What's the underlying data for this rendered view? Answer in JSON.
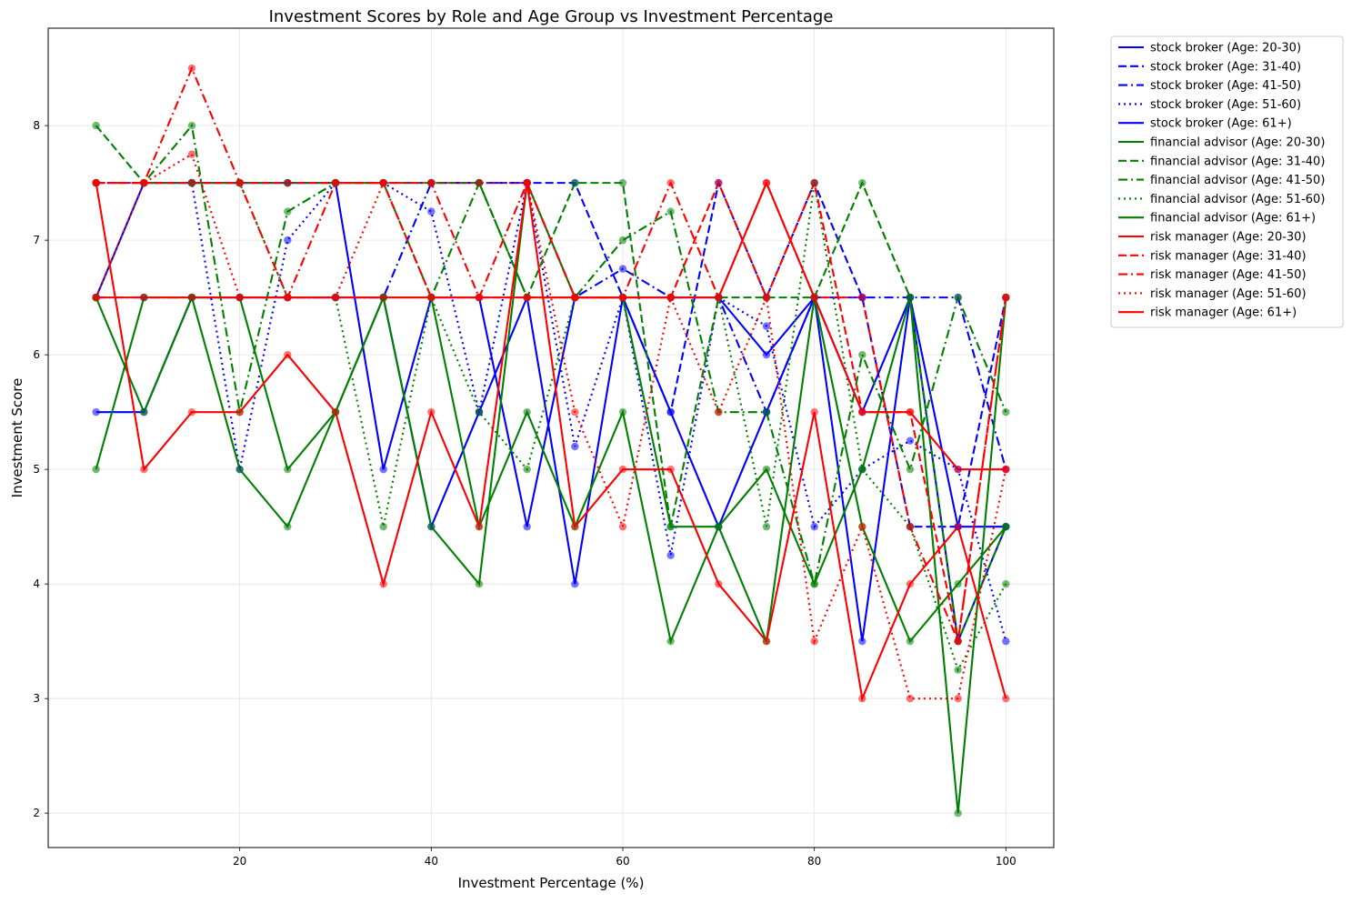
{
  "chart_data": {
    "type": "line",
    "title": "Investment Scores by Role and Age Group vs Investment Percentage",
    "xlabel": "Investment Percentage (%)",
    "ylabel": "Investment Score",
    "xlim": [
      0,
      105
    ],
    "ylim": [
      1.7,
      8.85
    ],
    "xticks": [
      20,
      40,
      60,
      80,
      100
    ],
    "yticks": [
      2,
      3,
      4,
      5,
      6,
      7,
      8
    ],
    "grid": true,
    "legend_position": "outside-right",
    "colors": {
      "stock broker": "#0000ff",
      "financial advisor": "#008000",
      "risk manager": "#ff0000"
    },
    "series": [
      {
        "name": "stock broker (Age: 20-30)",
        "role": "stock broker",
        "style": "solid",
        "x": [
          5,
          10,
          15,
          20,
          25,
          30,
          35,
          40,
          45,
          50,
          55,
          60,
          65,
          70,
          75,
          80,
          85,
          90,
          95,
          100
        ],
        "y": [
          5.5,
          5.5,
          6.5,
          6.5,
          6.5,
          6.5,
          6.5,
          4.5,
          5.5,
          6.5,
          4.0,
          6.5,
          5.5,
          4.5,
          5.5,
          6.5,
          3.5,
          6.5,
          4.5,
          4.5
        ]
      },
      {
        "name": "stock broker (Age: 31-40)",
        "role": "stock broker",
        "style": "dashed",
        "x": [
          5,
          10,
          15,
          20,
          25,
          30,
          35,
          40,
          45,
          50,
          55,
          60,
          65,
          70,
          75,
          80,
          85,
          90,
          95,
          100
        ],
        "y": [
          7.5,
          7.5,
          7.5,
          7.5,
          7.5,
          7.5,
          7.5,
          7.5,
          7.5,
          7.5,
          7.5,
          6.5,
          5.5,
          7.5,
          6.5,
          7.5,
          6.5,
          4.5,
          4.5,
          6.5
        ]
      },
      {
        "name": "stock broker (Age: 41-50)",
        "role": "stock broker",
        "style": "dashdot",
        "x": [
          5,
          10,
          15,
          20,
          25,
          30,
          35,
          40,
          45,
          50,
          55,
          60,
          65,
          70,
          75,
          80,
          85,
          90,
          95,
          100
        ],
        "y": [
          6.5,
          6.5,
          6.5,
          6.5,
          6.5,
          6.5,
          6.5,
          7.5,
          7.5,
          7.5,
          6.5,
          6.75,
          6.5,
          6.5,
          5.5,
          6.5,
          6.5,
          6.5,
          6.5,
          5.0
        ]
      },
      {
        "name": "stock broker (Age: 51-60)",
        "role": "stock broker",
        "style": "dotted",
        "x": [
          5,
          10,
          15,
          20,
          25,
          30,
          35,
          40,
          45,
          50,
          55,
          60,
          65,
          70,
          75,
          80,
          85,
          90,
          95,
          100
        ],
        "y": [
          7.5,
          7.5,
          7.5,
          5.0,
          7.0,
          7.5,
          7.5,
          7.25,
          5.5,
          7.5,
          5.2,
          6.5,
          4.25,
          6.5,
          6.25,
          4.5,
          5.0,
          5.25,
          5.0,
          3.5
        ]
      },
      {
        "name": "stock broker (Age: 61+)",
        "role": "stock broker",
        "style": "solid",
        "x": [
          5,
          10,
          15,
          20,
          25,
          30,
          35,
          40,
          45,
          50,
          55,
          60,
          65,
          70,
          75,
          80,
          85,
          90,
          95,
          100
        ],
        "y": [
          6.5,
          7.5,
          7.5,
          7.5,
          7.5,
          7.5,
          5.0,
          6.5,
          6.5,
          4.5,
          6.5,
          6.5,
          6.5,
          6.5,
          6.0,
          6.5,
          5.5,
          6.5,
          3.5,
          4.5
        ]
      },
      {
        "name": "financial advisor (Age: 20-30)",
        "role": "financial advisor",
        "style": "solid",
        "x": [
          5,
          10,
          15,
          20,
          25,
          30,
          35,
          40,
          45,
          50,
          55,
          60,
          65,
          70,
          75,
          80,
          85,
          90,
          95,
          100
        ],
        "y": [
          6.5,
          5.5,
          6.5,
          5.0,
          4.5,
          5.5,
          6.5,
          6.5,
          4.5,
          5.5,
          4.5,
          5.5,
          3.5,
          4.5,
          5.0,
          4.0,
          5.0,
          6.5,
          2.0,
          6.5
        ]
      },
      {
        "name": "financial advisor (Age: 31-40)",
        "role": "financial advisor",
        "style": "dashed",
        "x": [
          5,
          10,
          15,
          20,
          25,
          30,
          35,
          40,
          45,
          50,
          55,
          60,
          65,
          70,
          75,
          80,
          85,
          90,
          95,
          100
        ],
        "y": [
          8.0,
          7.5,
          7.5,
          7.5,
          7.5,
          7.5,
          7.5,
          7.5,
          7.5,
          6.5,
          7.5,
          7.5,
          4.5,
          6.5,
          6.5,
          6.5,
          7.5,
          6.5,
          3.5,
          4.5
        ]
      },
      {
        "name": "financial advisor (Age: 41-50)",
        "role": "financial advisor",
        "style": "dashdot",
        "x": [
          5,
          10,
          15,
          20,
          25,
          30,
          35,
          40,
          45,
          50,
          55,
          60,
          65,
          70,
          75,
          80,
          85,
          90,
          95,
          100
        ],
        "y": [
          7.5,
          7.5,
          8.0,
          5.5,
          7.25,
          7.5,
          7.5,
          6.5,
          7.5,
          6.5,
          6.5,
          7.0,
          7.25,
          5.5,
          5.5,
          4.0,
          6.0,
          5.0,
          6.5,
          5.5
        ]
      },
      {
        "name": "financial advisor (Age: 51-60)",
        "role": "financial advisor",
        "style": "dotted",
        "x": [
          5,
          10,
          15,
          20,
          25,
          30,
          35,
          40,
          45,
          50,
          55,
          60,
          65,
          70,
          75,
          80,
          85,
          90,
          95,
          100
        ],
        "y": [
          6.5,
          7.5,
          7.5,
          7.5,
          6.5,
          6.5,
          4.5,
          6.5,
          5.5,
          5.0,
          6.5,
          6.5,
          6.5,
          6.5,
          4.5,
          7.5,
          5.0,
          4.5,
          3.25,
          4.0
        ]
      },
      {
        "name": "financial advisor (Age: 61+)",
        "role": "financial advisor",
        "style": "solid",
        "x": [
          5,
          10,
          15,
          20,
          25,
          30,
          35,
          40,
          45,
          50,
          55,
          60,
          65,
          70,
          75,
          80,
          85,
          90,
          95,
          100
        ],
        "y": [
          5.0,
          6.5,
          6.5,
          6.5,
          5.0,
          5.5,
          6.5,
          4.5,
          4.0,
          7.5,
          6.5,
          6.5,
          4.5,
          4.5,
          3.5,
          6.5,
          4.5,
          3.5,
          4.0,
          4.5
        ]
      },
      {
        "name": "risk manager (Age: 20-30)",
        "role": "risk manager",
        "style": "solid",
        "x": [
          5,
          10,
          15,
          20,
          25,
          30,
          35,
          40,
          45,
          50,
          55,
          60,
          65,
          70,
          75,
          80,
          85,
          90,
          95,
          100
        ],
        "y": [
          6.5,
          6.5,
          6.5,
          6.5,
          6.5,
          6.5,
          6.5,
          6.5,
          6.5,
          6.5,
          6.5,
          6.5,
          6.5,
          6.5,
          7.5,
          6.5,
          5.5,
          5.5,
          5.0,
          5.0
        ]
      },
      {
        "name": "risk manager (Age: 31-40)",
        "role": "risk manager",
        "style": "dashed",
        "x": [
          5,
          10,
          15,
          20,
          25,
          30,
          35,
          40,
          45,
          50,
          55,
          60,
          65,
          70,
          75,
          80,
          85,
          90,
          95,
          100
        ],
        "y": [
          7.5,
          7.5,
          7.5,
          7.5,
          7.5,
          7.5,
          7.5,
          6.5,
          6.5,
          6.5,
          6.5,
          6.5,
          6.5,
          7.5,
          6.5,
          7.5,
          5.5,
          5.5,
          3.5,
          6.5
        ]
      },
      {
        "name": "risk manager (Age: 41-50)",
        "role": "risk manager",
        "style": "dashdot",
        "x": [
          5,
          10,
          15,
          20,
          25,
          30,
          35,
          40,
          45,
          50,
          55,
          60,
          65,
          70,
          75,
          80,
          85,
          90,
          95,
          100
        ],
        "y": [
          7.5,
          7.5,
          8.5,
          7.5,
          6.5,
          7.5,
          7.5,
          7.5,
          6.5,
          7.5,
          6.5,
          6.5,
          7.5,
          6.5,
          7.5,
          6.5,
          6.5,
          4.5,
          3.5,
          6.5
        ]
      },
      {
        "name": "risk manager (Age: 51-60)",
        "role": "risk manager",
        "style": "dotted",
        "x": [
          5,
          10,
          15,
          20,
          25,
          30,
          35,
          40,
          45,
          50,
          55,
          60,
          65,
          70,
          75,
          80,
          85,
          90,
          95,
          100
        ],
        "y": [
          6.5,
          7.5,
          7.75,
          6.5,
          6.5,
          6.5,
          7.5,
          7.5,
          7.5,
          7.5,
          5.5,
          4.5,
          6.5,
          5.5,
          6.5,
          3.5,
          4.5,
          3.0,
          3.0,
          5.0
        ]
      },
      {
        "name": "risk manager (Age: 61+)",
        "role": "risk manager",
        "style": "solid",
        "x": [
          5,
          10,
          15,
          20,
          25,
          30,
          35,
          40,
          45,
          50,
          55,
          60,
          65,
          70,
          75,
          80,
          85,
          90,
          95,
          100
        ],
        "y": [
          7.5,
          5.0,
          5.5,
          5.5,
          6.0,
          5.5,
          4.0,
          5.5,
          4.5,
          7.5,
          4.5,
          5.0,
          5.0,
          4.0,
          3.5,
          5.5,
          3.0,
          4.0,
          4.5,
          3.0
        ]
      }
    ]
  }
}
